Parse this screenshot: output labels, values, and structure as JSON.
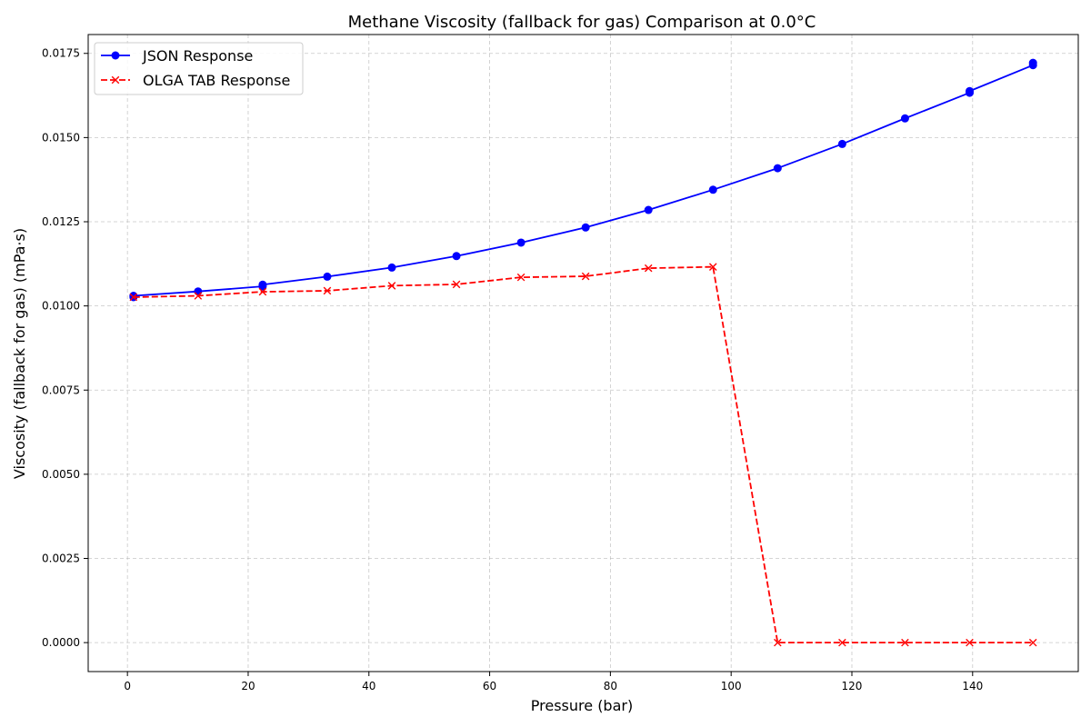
{
  "chart_data": {
    "type": "line",
    "title": "Methane Viscosity (fallback for gas) Comparison at 0.0°C",
    "xlabel": "Pressure (bar)",
    "ylabel": "Viscosity (fallback for gas) (mPa·s)",
    "xlim": [
      -6.5,
      157.5
    ],
    "ylim": [
      -0.00086,
      0.01806
    ],
    "xticks": [
      0,
      20,
      40,
      60,
      80,
      100,
      120,
      140
    ],
    "xtick_labels": [
      "0",
      "20",
      "40",
      "60",
      "80",
      "100",
      "120",
      "140"
    ],
    "yticks": [
      0,
      0.0025,
      0.005,
      0.0075,
      0.01,
      0.0125,
      0.015,
      0.0175
    ],
    "ytick_labels": [
      "0.0000",
      "0.0025",
      "0.0050",
      "0.0075",
      "0.0100",
      "0.0125",
      "0.0150",
      "0.0175"
    ],
    "grid": true,
    "legend_position": "top-left",
    "series": [
      {
        "name": "JSON Response",
        "color": "#0000ff",
        "line_style": "solid",
        "marker": "circle",
        "x": [
          1.0,
          1.0,
          11.7,
          22.4,
          22.4,
          33.1,
          43.8,
          54.5,
          65.2,
          75.9,
          86.3,
          97.0,
          107.7,
          118.4,
          128.8,
          139.5,
          139.5,
          150.0,
          150.0
        ],
        "y": [
          0.01026,
          0.0103,
          0.01043,
          0.01058,
          0.01063,
          0.01087,
          0.01114,
          0.01148,
          0.01188,
          0.01233,
          0.01285,
          0.01345,
          0.01409,
          0.01481,
          0.01557,
          0.01633,
          0.01638,
          0.01715,
          0.01722
        ]
      },
      {
        "name": "OLGA TAB Response",
        "color": "#ff0000",
        "line_style": "dashed",
        "marker": "x",
        "x": [
          1.0,
          11.7,
          22.4,
          33.1,
          43.8,
          54.5,
          65.2,
          75.9,
          86.3,
          97.0,
          107.7,
          118.4,
          128.8,
          139.5,
          150.0
        ],
        "y": [
          0.01026,
          0.0103,
          0.01042,
          0.01045,
          0.0106,
          0.01064,
          0.01085,
          0.01088,
          0.01112,
          0.01116,
          0.0,
          0.0,
          0.0,
          0.0,
          0.0
        ]
      }
    ]
  }
}
